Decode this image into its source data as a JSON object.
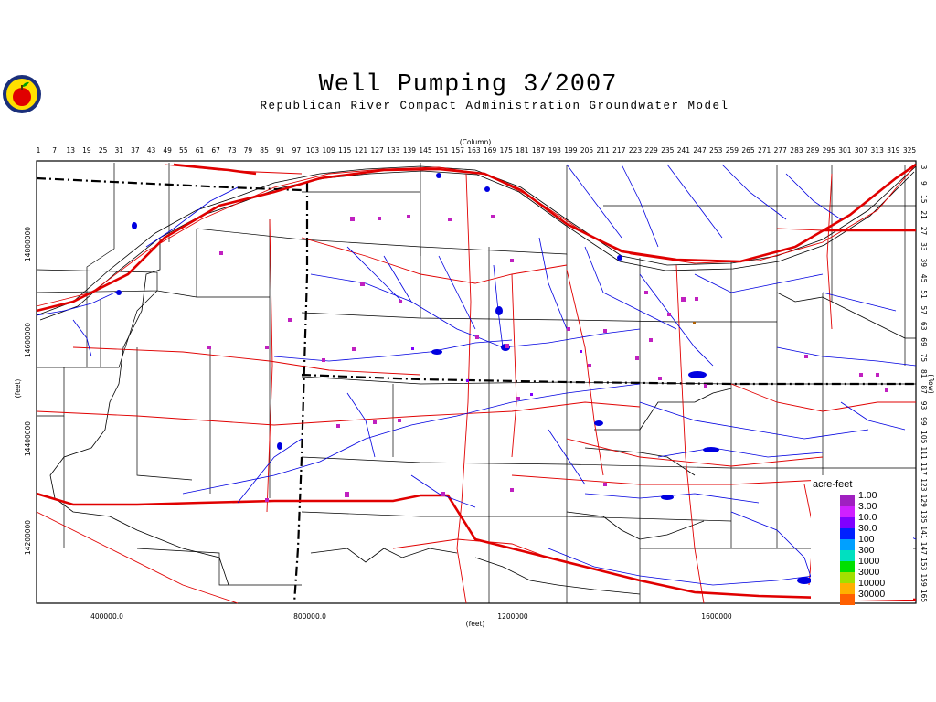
{
  "title": "Well Pumping 3/2007",
  "subtitle": "Republican River Compact Administration Groundwater Model",
  "column_axis_label": "(Column)",
  "row_axis_label": "(Row)",
  "x_axis_label": "(feet)",
  "y_axis_label": "(feet)",
  "column_ticks": [
    "1",
    "7",
    "13",
    "19",
    "25",
    "31",
    "37",
    "43",
    "49",
    "55",
    "61",
    "67",
    "73",
    "79",
    "85",
    "91",
    "97",
    "103",
    "109",
    "115",
    "121",
    "127",
    "133",
    "139",
    "145",
    "151",
    "157",
    "163",
    "169",
    "175",
    "181",
    "187",
    "193",
    "199",
    "205",
    "211",
    "217",
    "223",
    "229",
    "235",
    "241",
    "247",
    "253",
    "259",
    "265",
    "271",
    "277",
    "283",
    "289",
    "295",
    "301",
    "307",
    "313",
    "319",
    "325"
  ],
  "row_ticks": [
    "3",
    "9",
    "15",
    "21",
    "27",
    "33",
    "39",
    "45",
    "51",
    "57",
    "63",
    "69",
    "75",
    "81",
    "87",
    "93",
    "99",
    "105",
    "111",
    "117",
    "123",
    "129",
    "135",
    "141",
    "147",
    "153",
    "159",
    "165"
  ],
  "x_ticks": [
    "400000.0",
    "800000.0",
    "1200000",
    "1600000"
  ],
  "y_ticks": [
    "14800000",
    "14600000",
    "14400000",
    "14200000"
  ],
  "legend": {
    "title": "acre-feet",
    "labels": [
      "1.00",
      "3.00",
      "10.0",
      "30.0",
      "100",
      "300",
      "1000",
      "3000",
      "10000",
      "30000"
    ],
    "colors": [
      "#a020c0",
      "#d020ff",
      "#8000ff",
      "#0020ff",
      "#00a0ff",
      "#00e0c0",
      "#00e000",
      "#a0e000",
      "#ffb000",
      "#ff6000"
    ]
  },
  "colors": {
    "river": "#0000e0",
    "highway": "#e00000",
    "boundary": "#000000"
  }
}
